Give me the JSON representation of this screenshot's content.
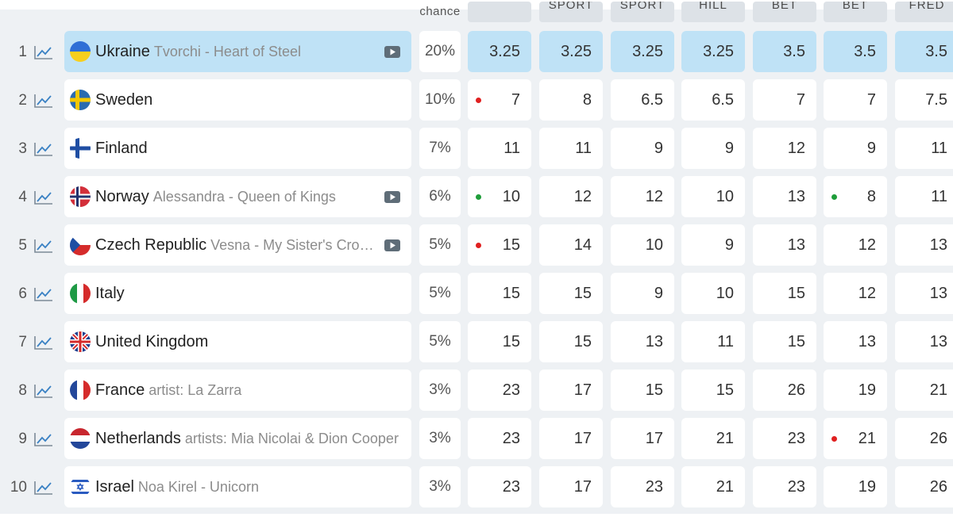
{
  "header": {
    "chance_label": "chance",
    "bookmakers": [
      {
        "label": ""
      },
      {
        "label": "SPORT"
      },
      {
        "label": "SPORT"
      },
      {
        "label": "HILL"
      },
      {
        "label": "BET"
      },
      {
        "label": "BET"
      },
      {
        "label": "FRED"
      }
    ]
  },
  "colors": {
    "highlight": "#bfe2f6",
    "dot_red": "#e02020",
    "dot_green": "#1f9d3a",
    "icon_blue": "#3b82c4"
  },
  "rows": [
    {
      "rank": "1",
      "flag": "ukraine-flag-icon",
      "country": "Ukraine",
      "sub": "Tvorchi - Heart of Steel",
      "video": true,
      "highlight": true,
      "chance": "20%",
      "odds": [
        {
          "v": "3.25"
        },
        {
          "v": "3.25"
        },
        {
          "v": "3.25"
        },
        {
          "v": "3.25"
        },
        {
          "v": "3.5"
        },
        {
          "v": "3.5"
        },
        {
          "v": "3.5"
        }
      ]
    },
    {
      "rank": "2",
      "flag": "sweden-flag-icon",
      "country": "Sweden",
      "sub": "",
      "video": false,
      "highlight": false,
      "chance": "10%",
      "odds": [
        {
          "v": "7",
          "dot": "red"
        },
        {
          "v": "8"
        },
        {
          "v": "6.5"
        },
        {
          "v": "6.5"
        },
        {
          "v": "7"
        },
        {
          "v": "7"
        },
        {
          "v": "7.5"
        }
      ]
    },
    {
      "rank": "3",
      "flag": "finland-flag-icon",
      "country": "Finland",
      "sub": "",
      "video": false,
      "highlight": false,
      "chance": "7%",
      "odds": [
        {
          "v": "11"
        },
        {
          "v": "11"
        },
        {
          "v": "9"
        },
        {
          "v": "9"
        },
        {
          "v": "12"
        },
        {
          "v": "9"
        },
        {
          "v": "11"
        }
      ]
    },
    {
      "rank": "4",
      "flag": "norway-flag-icon",
      "country": "Norway",
      "sub": "Alessandra - Queen of Kings",
      "video": true,
      "highlight": false,
      "chance": "6%",
      "odds": [
        {
          "v": "10",
          "dot": "green"
        },
        {
          "v": "12"
        },
        {
          "v": "12"
        },
        {
          "v": "10"
        },
        {
          "v": "13"
        },
        {
          "v": "8",
          "dot": "green"
        },
        {
          "v": "11"
        }
      ]
    },
    {
      "rank": "5",
      "flag": "czech-flag-icon",
      "country": "Czech Republic",
      "sub": "Vesna - My Sister's Cro…",
      "video": true,
      "highlight": false,
      "chance": "5%",
      "odds": [
        {
          "v": "15",
          "dot": "red"
        },
        {
          "v": "14"
        },
        {
          "v": "10"
        },
        {
          "v": "9"
        },
        {
          "v": "13"
        },
        {
          "v": "12"
        },
        {
          "v": "13"
        }
      ]
    },
    {
      "rank": "6",
      "flag": "italy-flag-icon",
      "country": "Italy",
      "sub": "",
      "video": false,
      "highlight": false,
      "chance": "5%",
      "odds": [
        {
          "v": "15"
        },
        {
          "v": "15"
        },
        {
          "v": "9"
        },
        {
          "v": "10"
        },
        {
          "v": "15"
        },
        {
          "v": "12"
        },
        {
          "v": "13"
        }
      ]
    },
    {
      "rank": "7",
      "flag": "uk-flag-icon",
      "country": "United Kingdom",
      "sub": "",
      "video": false,
      "highlight": false,
      "chance": "5%",
      "odds": [
        {
          "v": "15"
        },
        {
          "v": "15"
        },
        {
          "v": "13"
        },
        {
          "v": "11"
        },
        {
          "v": "15"
        },
        {
          "v": "13"
        },
        {
          "v": "13"
        }
      ]
    },
    {
      "rank": "8",
      "flag": "france-flag-icon",
      "country": "France",
      "sub": "artist: La Zarra",
      "video": false,
      "highlight": false,
      "chance": "3%",
      "odds": [
        {
          "v": "23"
        },
        {
          "v": "17"
        },
        {
          "v": "15"
        },
        {
          "v": "15"
        },
        {
          "v": "26"
        },
        {
          "v": "19"
        },
        {
          "v": "21"
        }
      ]
    },
    {
      "rank": "9",
      "flag": "netherlands-flag-icon",
      "country": "Netherlands",
      "sub": "artists: Mia Nicolai & Dion Cooper",
      "video": false,
      "highlight": false,
      "chance": "3%",
      "odds": [
        {
          "v": "23"
        },
        {
          "v": "17"
        },
        {
          "v": "17"
        },
        {
          "v": "21"
        },
        {
          "v": "23"
        },
        {
          "v": "21",
          "dot": "red"
        },
        {
          "v": "26"
        }
      ]
    },
    {
      "rank": "10",
      "flag": "israel-flag-icon",
      "country": "Israel",
      "sub": "Noa Kirel - Unicorn",
      "video": false,
      "highlight": false,
      "chance": "3%",
      "odds": [
        {
          "v": "23"
        },
        {
          "v": "17"
        },
        {
          "v": "23"
        },
        {
          "v": "21"
        },
        {
          "v": "23"
        },
        {
          "v": "19"
        },
        {
          "v": "26"
        }
      ]
    }
  ]
}
